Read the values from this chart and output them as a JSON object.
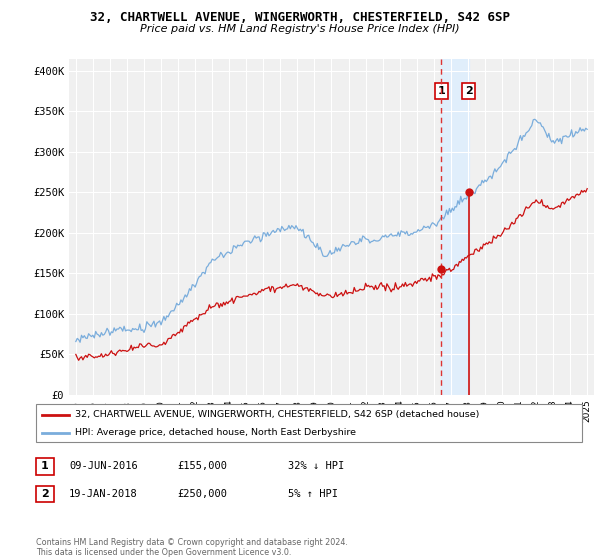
{
  "title1": "32, CHARTWELL AVENUE, WINGERWORTH, CHESTERFIELD, S42 6SP",
  "title2": "Price paid vs. HM Land Registry's House Price Index (HPI)",
  "legend_line1": "32, CHARTWELL AVENUE, WINGERWORTH, CHESTERFIELD, S42 6SP (detached house)",
  "legend_line2": "HPI: Average price, detached house, North East Derbyshire",
  "transaction1_date": "09-JUN-2016",
  "transaction1_price": "£155,000",
  "transaction1_hpi": "32% ↓ HPI",
  "transaction2_date": "19-JAN-2018",
  "transaction2_price": "£250,000",
  "transaction2_hpi": "5% ↑ HPI",
  "footer": "Contains HM Land Registry data © Crown copyright and database right 2024.\nThis data is licensed under the Open Government Licence v3.0.",
  "property_color": "#cc1111",
  "hpi_color": "#7aaddc",
  "vline1_color": "#dd3333",
  "vline2_color": "#cc1111",
  "fill_color": "#ddeeff",
  "background_color": "#ffffff",
  "plot_bg_color": "#f0f0f0",
  "grid_color": "#ffffff",
  "ytick_labels": [
    "£0",
    "£50K",
    "£100K",
    "£150K",
    "£200K",
    "£250K",
    "£300K",
    "£350K",
    "£400K"
  ],
  "ytick_values": [
    0,
    50000,
    100000,
    150000,
    200000,
    250000,
    300000,
    350000,
    400000
  ],
  "ylim": [
    0,
    415000
  ],
  "year_start": 1995,
  "year_end": 2025,
  "sale1_year": 2016.44,
  "sale1_price": 155000,
  "sale2_year": 2018.05,
  "sale2_price": 250000
}
